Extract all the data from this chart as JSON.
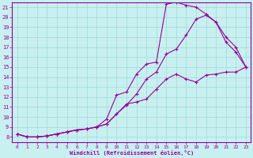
{
  "title": "",
  "xlabel": "Windchill (Refroidissement éolien,°C)",
  "ylabel": "",
  "bg_color": "#c8f0f0",
  "grid_color": "#a0d8d8",
  "line_color": "#990099",
  "spine_color": "#990099",
  "xlim": [
    -0.5,
    23.5
  ],
  "ylim": [
    7.5,
    21.5
  ],
  "yticks": [
    8,
    9,
    10,
    11,
    12,
    13,
    14,
    15,
    16,
    17,
    18,
    19,
    20,
    21
  ],
  "xticks": [
    0,
    1,
    2,
    3,
    4,
    5,
    6,
    7,
    8,
    9,
    10,
    11,
    12,
    13,
    14,
    15,
    16,
    17,
    18,
    19,
    20,
    21,
    22,
    23
  ],
  "line1_x": [
    0,
    1,
    2,
    3,
    4,
    5,
    6,
    7,
    8,
    9,
    10,
    11,
    12,
    13,
    14,
    15,
    16,
    17,
    18,
    19,
    20,
    21,
    22,
    23
  ],
  "line1_y": [
    8.3,
    8.0,
    8.0,
    8.1,
    8.3,
    8.5,
    8.7,
    8.8,
    9.0,
    9.8,
    12.2,
    12.5,
    14.3,
    15.3,
    15.5,
    21.3,
    21.5,
    21.2,
    21.0,
    20.3,
    19.5,
    17.5,
    16.5,
    15.0
  ],
  "line2_x": [
    0,
    1,
    2,
    3,
    4,
    5,
    6,
    7,
    8,
    9,
    10,
    11,
    12,
    13,
    14,
    15,
    16,
    17,
    18,
    19,
    20,
    21,
    22,
    23
  ],
  "line2_y": [
    8.3,
    8.0,
    8.0,
    8.1,
    8.3,
    8.5,
    8.7,
    8.8,
    9.0,
    9.3,
    10.3,
    11.2,
    12.3,
    13.8,
    14.5,
    16.3,
    16.8,
    18.2,
    19.8,
    20.2,
    19.5,
    18.0,
    17.0,
    15.0
  ],
  "line3_x": [
    0,
    1,
    2,
    3,
    4,
    5,
    6,
    7,
    8,
    9,
    10,
    11,
    12,
    13,
    14,
    15,
    16,
    17,
    18,
    19,
    20,
    21,
    22,
    23
  ],
  "line3_y": [
    8.3,
    8.0,
    8.0,
    8.1,
    8.3,
    8.5,
    8.7,
    8.8,
    9.0,
    9.3,
    10.3,
    11.3,
    11.5,
    11.8,
    12.8,
    13.8,
    14.3,
    13.8,
    13.5,
    14.2,
    14.3,
    14.5,
    14.5,
    15.0
  ]
}
